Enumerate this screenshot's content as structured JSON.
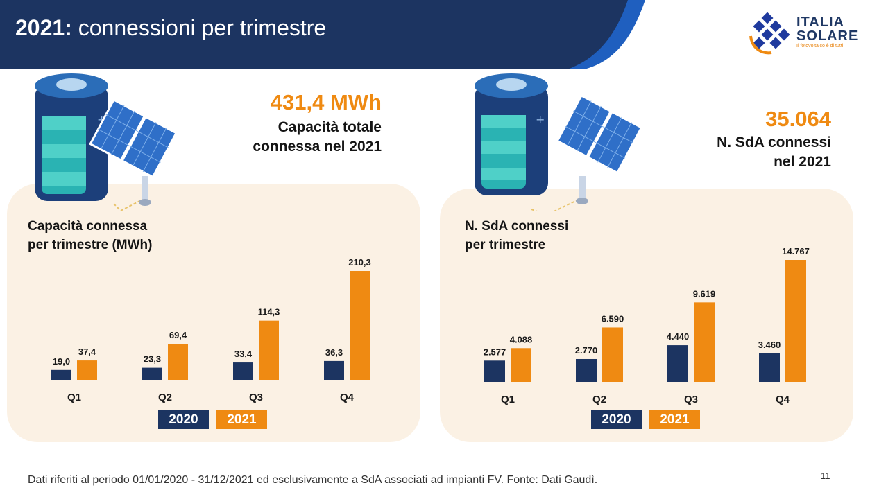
{
  "header": {
    "title_bold": "2021:",
    "title_rest": " connessioni per trimestre",
    "bg_color": "#1c3461",
    "accent_color": "#1f5fbf"
  },
  "logo": {
    "line1": "ITALIA",
    "line2": "SOLARE",
    "tagline": "Il fotovoltaico è di tutti"
  },
  "left": {
    "kpi_value": "431,4 MWh",
    "kpi_label_1": "Capacità totale",
    "kpi_label_2": "connessa nel 2021",
    "chart_title_1": "Capacità connessa",
    "chart_title_2": "per trimestre (MWh)"
  },
  "right": {
    "kpi_value": "35.064",
    "kpi_label_1": "N. SdA connessi",
    "kpi_label_2": "nel 2021",
    "chart_title_1": "N. SdA connessi",
    "chart_title_2": "per trimestre"
  },
  "legend": {
    "y2020": "2020",
    "y2021": "2021"
  },
  "colors": {
    "2020": "#1c3461",
    "2021": "#ef8a12",
    "panel": "#fbf1e4"
  },
  "chart_data": [
    {
      "type": "bar",
      "title": "Capacità connessa per trimestre (MWh)",
      "categories": [
        "Q1",
        "Q2",
        "Q3",
        "Q4"
      ],
      "series": [
        {
          "name": "2020",
          "values": [
            19.0,
            23.3,
            33.4,
            36.3
          ],
          "labels": [
            "19,0",
            "23,3",
            "33,4",
            "36,3"
          ]
        },
        {
          "name": "2021",
          "values": [
            37.4,
            69.4,
            114.3,
            210.3
          ],
          "labels": [
            "37,4",
            "69,4",
            "114,3",
            "210,3"
          ]
        }
      ],
      "legend_position": "bottom"
    },
    {
      "type": "bar",
      "title": "N. SdA connessi per trimestre",
      "categories": [
        "Q1",
        "Q2",
        "Q3",
        "Q4"
      ],
      "series": [
        {
          "name": "2020",
          "values": [
            2577,
            2770,
            4440,
            3460
          ],
          "labels": [
            "2.577",
            "2.770",
            "4.440",
            "3.460"
          ]
        },
        {
          "name": "2021",
          "values": [
            4088,
            6590,
            9619,
            14767
          ],
          "labels": [
            "4.088",
            "6.590",
            "9.619",
            "14.767"
          ]
        }
      ],
      "legend_position": "bottom"
    }
  ],
  "footer": {
    "note": "Dati riferiti al periodo 01/01/2020 - 31/12/2021 ed esclusivamente a SdA associati ad impianti FV. Fonte: Dati Gaudì.",
    "page": "11"
  }
}
